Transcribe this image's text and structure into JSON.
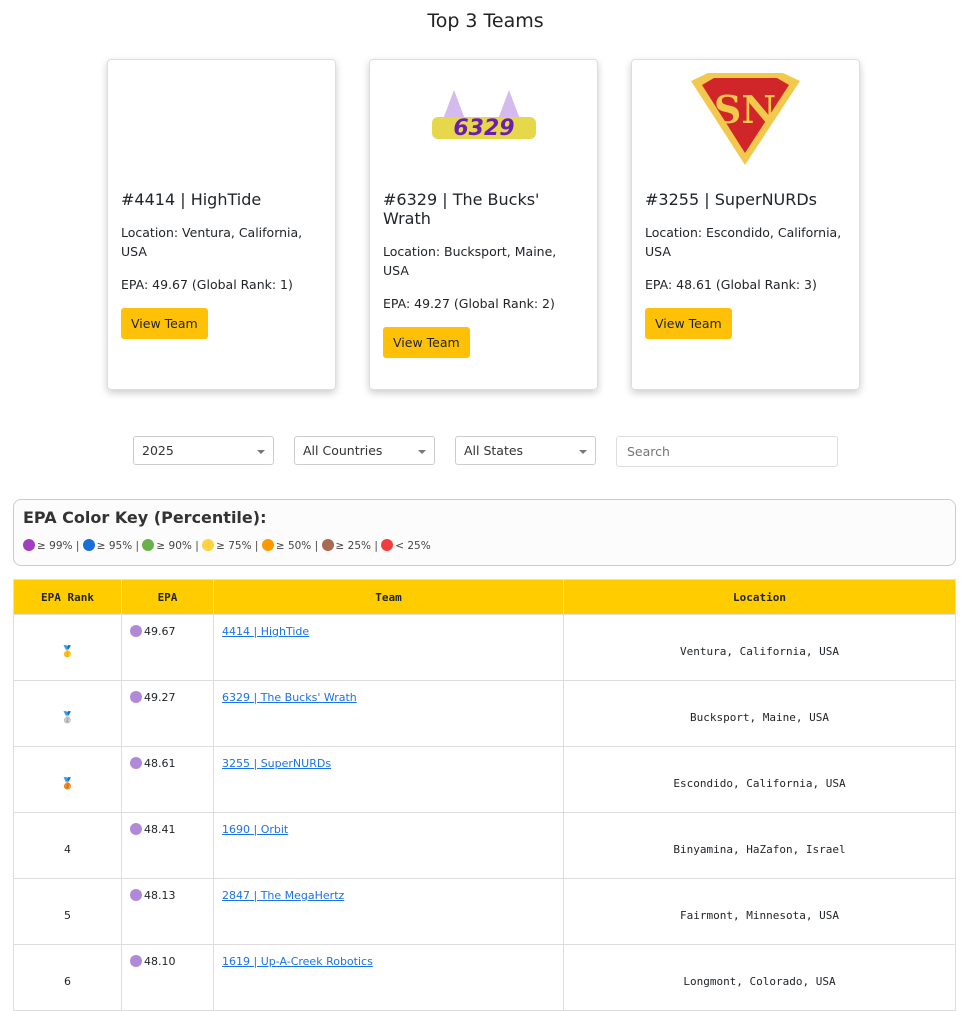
{
  "title": "Top 3 Teams",
  "cards": [
    {
      "heading": "#4414 | HighTide",
      "location": "Location: Ventura, California, USA",
      "epa": "EPA: 49.67 (Global Rank: 1)",
      "button": "View Team",
      "logo": ""
    },
    {
      "heading": "#6329 | The Bucks' Wrath",
      "location": "Location: Bucksport, Maine, USA",
      "epa": "EPA: 49.27 (Global Rank: 2)",
      "button": "View Team",
      "logo": "6329"
    },
    {
      "heading": "#3255 | SuperNURDs",
      "location": "Location: Escondido, California, USA",
      "epa": "EPA: 48.61 (Global Rank: 3)",
      "button": "View Team",
      "logo": "SN"
    }
  ],
  "filters": {
    "year": "2025",
    "country": "All Countries",
    "state": "All States",
    "search_placeholder": "Search"
  },
  "key": {
    "title": "EPA Color Key (Percentile):",
    "items": [
      {
        "color": "#a040c0",
        "label": "≥ 99%"
      },
      {
        "color": "#1a6fd6",
        "label": "≥ 95%"
      },
      {
        "color": "#6ab04c",
        "label": "≥ 90%"
      },
      {
        "color": "#ffd23f",
        "label": "≥ 75%"
      },
      {
        "color": "#ff9800",
        "label": "≥ 50%"
      },
      {
        "color": "#a86a50",
        "label": "≥ 25%"
      },
      {
        "color": "#f03e3e",
        "label": "< 25%"
      }
    ]
  },
  "table": {
    "headers": [
      "EPA Rank",
      "EPA",
      "Team",
      "Location"
    ],
    "rows": [
      {
        "rank": "🥇",
        "epa": "49.67",
        "team": "4414 | HighTide",
        "location": "Ventura, California, USA"
      },
      {
        "rank": "🥈",
        "epa": "49.27",
        "team": "6329 | The Bucks' Wrath",
        "location": "Bucksport, Maine, USA"
      },
      {
        "rank": "🥉",
        "epa": "48.61",
        "team": "3255 | SuperNURDs",
        "location": "Escondido, California, USA"
      },
      {
        "rank": "4",
        "epa": "48.41",
        "team": "1690 | Orbit",
        "location": "Binyamina, HaZafon, Israel"
      },
      {
        "rank": "5",
        "epa": "48.13",
        "team": "2847 | The MegaHertz",
        "location": "Fairmont, Minnesota, USA"
      },
      {
        "rank": "6",
        "epa": "48.10",
        "team": "1619 | Up-A-Creek Robotics",
        "location": "Longmont, Colorado, USA"
      }
    ],
    "epa_dot_color": "#b08ad8"
  }
}
